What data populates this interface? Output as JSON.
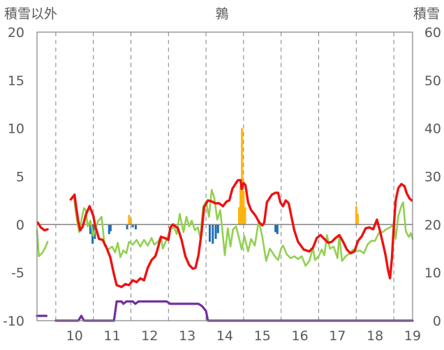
{
  "chart_data": {
    "type": "line",
    "title": "鶉",
    "left_axis_title": "積雪以外",
    "right_axis_title": "積雪",
    "left_ylim": [
      -10,
      20
    ],
    "right_ylim": [
      0,
      60
    ],
    "left_yticks": [
      "20",
      "15",
      "10",
      "5",
      "0",
      "-5",
      "-10"
    ],
    "right_yticks": [
      "60",
      "50",
      "40",
      "30",
      "20",
      "10",
      "0"
    ],
    "xlim": [
      9.5,
      19.5
    ],
    "x_tick_labels": [
      "10",
      "11",
      "12",
      "13",
      "14",
      "15",
      "16",
      "17",
      "18",
      "19"
    ],
    "grid": "vertical dashed at day boundaries, solid horizontal at left-axis 0",
    "colors": {
      "red_line": "#ee1111",
      "green_line": "#92d050",
      "purple_line": "#7030a0",
      "blue_bars": "#1f6fb4",
      "orange_bars": "#ffb30f",
      "zero_line": "#808080"
    },
    "series": [
      {
        "style": "red-line",
        "axis": "left",
        "points": [
          [
            9.52,
            0.2
          ],
          [
            9.6,
            -0.3
          ],
          [
            9.7,
            -0.6
          ],
          [
            9.78,
            -0.5
          ],
          null,
          [
            10.4,
            2.6
          ],
          [
            10.5,
            3.1
          ],
          [
            10.55,
            1.6
          ],
          [
            10.6,
            0.3
          ],
          [
            10.65,
            -0.6
          ],
          [
            10.72,
            -0.2
          ],
          [
            10.8,
            1.0
          ],
          [
            10.9,
            1.9
          ],
          [
            10.95,
            1.4
          ],
          [
            11.0,
            0.9
          ],
          [
            11.05,
            -0.2
          ],
          [
            11.1,
            -0.8
          ],
          [
            11.15,
            -1.5
          ],
          [
            11.25,
            -1.6
          ],
          [
            11.35,
            -2.4
          ],
          [
            11.45,
            -3.4
          ],
          [
            11.55,
            -5.2
          ],
          [
            11.62,
            -6.3
          ],
          [
            11.75,
            -6.5
          ],
          [
            11.85,
            -6.2
          ],
          [
            11.95,
            -6.3
          ],
          [
            12.05,
            -5.8
          ],
          [
            12.15,
            -6.0
          ],
          [
            12.25,
            -5.6
          ],
          [
            12.35,
            -5.8
          ],
          [
            12.45,
            -4.5
          ],
          [
            12.55,
            -3.7
          ],
          [
            12.65,
            -3.3
          ],
          [
            12.7,
            -2.7
          ],
          [
            12.8,
            -1.3
          ],
          [
            12.9,
            -1.4
          ],
          [
            13.0,
            -1.6
          ],
          [
            13.05,
            -0.3
          ],
          [
            13.12,
            0.0
          ],
          [
            13.25,
            -0.4
          ],
          [
            13.35,
            -1.6
          ],
          [
            13.45,
            -3.3
          ],
          [
            13.55,
            -4.2
          ],
          [
            13.65,
            -4.6
          ],
          [
            13.72,
            -4.5
          ],
          [
            13.8,
            -3.2
          ],
          [
            13.88,
            -0.9
          ],
          [
            13.95,
            1.8
          ],
          [
            14.05,
            2.5
          ],
          [
            14.15,
            2.4
          ],
          [
            14.25,
            2.2
          ],
          [
            14.35,
            2.2
          ],
          [
            14.45,
            1.9
          ],
          [
            14.55,
            2.4
          ],
          [
            14.62,
            2.5
          ],
          [
            14.7,
            3.7
          ],
          [
            14.78,
            4.2
          ],
          [
            14.85,
            4.6
          ],
          [
            14.92,
            4.6
          ],
          [
            14.95,
            3.7
          ],
          [
            15.0,
            4.3
          ],
          [
            15.05,
            4.1
          ],
          [
            15.12,
            2.3
          ],
          [
            15.2,
            1.5
          ],
          [
            15.32,
            0.9
          ],
          [
            15.42,
            0.2
          ],
          [
            15.5,
            -0.1
          ],
          [
            15.55,
            0.2
          ],
          [
            15.62,
            2.3
          ],
          [
            15.75,
            3.1
          ],
          [
            15.85,
            3.3
          ],
          [
            15.92,
            3.3
          ],
          [
            15.98,
            2.3
          ],
          [
            16.05,
            1.9
          ],
          [
            16.12,
            2.5
          ],
          [
            16.2,
            2.2
          ],
          [
            16.28,
            0.7
          ],
          [
            16.35,
            -0.6
          ],
          [
            16.45,
            -1.8
          ],
          [
            16.6,
            -2.6
          ],
          [
            16.75,
            -2.8
          ],
          [
            16.85,
            -2.4
          ],
          [
            16.95,
            -1.4
          ],
          [
            17.05,
            -1.1
          ],
          [
            17.15,
            -1.5
          ],
          [
            17.25,
            -1.9
          ],
          [
            17.35,
            -1.8
          ],
          [
            17.45,
            -1.4
          ],
          [
            17.55,
            -1.1
          ],
          [
            17.65,
            -1.8
          ],
          [
            17.75,
            -2.6
          ],
          [
            17.85,
            -3.0
          ],
          [
            17.95,
            -2.8
          ],
          [
            18.05,
            -1.7
          ],
          [
            18.15,
            -1.2
          ],
          [
            18.25,
            -0.4
          ],
          [
            18.35,
            -0.3
          ],
          [
            18.45,
            -0.5
          ],
          [
            18.55,
            0.5
          ],
          [
            18.62,
            -0.5
          ],
          [
            18.7,
            -1.8
          ],
          [
            18.78,
            -3.2
          ],
          [
            18.85,
            -4.8
          ],
          [
            18.9,
            -5.6
          ],
          [
            18.95,
            -3.5
          ],
          [
            19.0,
            -0.2
          ],
          [
            19.05,
            2.5
          ],
          [
            19.12,
            3.8
          ],
          [
            19.2,
            4.2
          ],
          [
            19.28,
            4.0
          ],
          [
            19.35,
            3.2
          ],
          [
            19.42,
            2.7
          ],
          [
            19.48,
            2.5
          ]
        ]
      },
      {
        "style": "green-line",
        "axis": "left",
        "points": [
          [
            9.5,
            -0.6
          ],
          [
            9.55,
            -3.3
          ],
          [
            9.65,
            -2.9
          ],
          [
            9.72,
            -2.4
          ],
          [
            9.78,
            -1.8
          ],
          null,
          [
            10.4,
            2.6
          ],
          [
            10.48,
            2.9
          ],
          [
            10.55,
            0.8
          ],
          [
            10.62,
            -0.8
          ],
          [
            10.68,
            0.4
          ],
          [
            10.75,
            1.7
          ],
          [
            10.8,
            1.5
          ],
          [
            10.85,
            -0.2
          ],
          [
            10.92,
            0.4
          ],
          [
            11.0,
            -1.2
          ],
          [
            11.05,
            -0.6
          ],
          [
            11.12,
            0.3
          ],
          [
            11.22,
            0.8
          ],
          [
            11.3,
            -2.2
          ],
          [
            11.4,
            -2.6
          ],
          [
            11.5,
            -2.3
          ],
          [
            11.58,
            -2.9
          ],
          [
            11.65,
            -1.9
          ],
          [
            11.72,
            -3.4
          ],
          [
            11.8,
            -2.7
          ],
          [
            11.88,
            -3.0
          ],
          [
            11.95,
            -1.8
          ],
          [
            12.05,
            -2.1
          ],
          [
            12.15,
            -1.6
          ],
          [
            12.25,
            -2.3
          ],
          [
            12.35,
            -1.6
          ],
          [
            12.45,
            -2.2
          ],
          [
            12.55,
            -1.4
          ],
          [
            12.62,
            -2.1
          ],
          [
            12.72,
            -1.8
          ],
          [
            12.8,
            -1.2
          ],
          [
            12.85,
            -2.5
          ],
          [
            12.95,
            -1.6
          ],
          [
            13.05,
            -0.5
          ],
          [
            13.15,
            -0.3
          ],
          [
            13.22,
            -1.0
          ],
          [
            13.3,
            1.1
          ],
          [
            13.4,
            -0.8
          ],
          [
            13.48,
            0.8
          ],
          [
            13.55,
            -0.2
          ],
          [
            13.62,
            0.4
          ],
          [
            13.7,
            -0.6
          ],
          [
            13.78,
            -0.3
          ],
          [
            13.85,
            -1.4
          ],
          [
            13.92,
            1.8
          ],
          [
            14.0,
            2.4
          ],
          [
            14.08,
            0.8
          ],
          [
            14.15,
            3.6
          ],
          [
            14.22,
            2.8
          ],
          [
            14.3,
            0.5
          ],
          [
            14.38,
            1.5
          ],
          [
            14.45,
            -1.2
          ],
          [
            14.5,
            -3.2
          ],
          [
            14.58,
            -0.4
          ],
          [
            14.65,
            -2.3
          ],
          [
            14.72,
            -0.5
          ],
          [
            14.8,
            -0.2
          ],
          [
            14.88,
            -1.4
          ],
          [
            14.95,
            -2.6
          ],
          [
            15.02,
            -1.2
          ],
          [
            15.12,
            -2.8
          ],
          [
            15.2,
            -1.5
          ],
          [
            15.3,
            -2.2
          ],
          [
            15.4,
            0.3
          ],
          [
            15.45,
            -0.4
          ],
          [
            15.5,
            -1.3
          ],
          [
            15.6,
            -3.8
          ],
          [
            15.7,
            -2.5
          ],
          [
            15.78,
            -3.0
          ],
          [
            15.85,
            -3.4
          ],
          [
            15.92,
            -3.7
          ],
          [
            16.0,
            -2.5
          ],
          [
            16.05,
            -2.2
          ],
          [
            16.15,
            -3.1
          ],
          [
            16.25,
            -3.5
          ],
          [
            16.35,
            -3.3
          ],
          [
            16.45,
            -3.6
          ],
          [
            16.55,
            -3.3
          ],
          [
            16.65,
            -4.3
          ],
          [
            16.75,
            -3.8
          ],
          [
            16.85,
            -2.4
          ],
          [
            16.9,
            -3.7
          ],
          [
            17.0,
            -3.3
          ],
          [
            17.08,
            -2.6
          ],
          [
            17.15,
            -3.2
          ],
          [
            17.22,
            -1.1
          ],
          [
            17.3,
            -2.5
          ],
          [
            17.4,
            -2.3
          ],
          [
            17.5,
            -3.5
          ],
          [
            17.55,
            -1.1
          ],
          [
            17.62,
            -3.8
          ],
          [
            17.72,
            -3.3
          ],
          [
            17.82,
            -3.0
          ],
          [
            17.92,
            -2.6
          ],
          [
            18.0,
            -2.8
          ],
          [
            18.1,
            -2.7
          ],
          [
            18.2,
            -3.0
          ],
          [
            18.3,
            -2.1
          ],
          [
            18.4,
            -1.7
          ],
          [
            18.5,
            -1.7
          ],
          [
            18.6,
            -0.9
          ],
          [
            18.7,
            -0.8
          ],
          [
            18.8,
            -0.5
          ],
          [
            18.9,
            -0.3
          ],
          [
            19.0,
            0.0
          ],
          [
            19.05,
            -1.5
          ],
          [
            19.12,
            0.9
          ],
          [
            19.2,
            1.9
          ],
          [
            19.25,
            2.3
          ],
          [
            19.32,
            -0.7
          ],
          [
            19.4,
            -1.3
          ],
          [
            19.45,
            -0.9
          ],
          [
            19.5,
            -1.5
          ]
        ]
      },
      {
        "style": "purple-line",
        "axis": "right",
        "points": [
          [
            9.5,
            1.0
          ],
          [
            9.75,
            1.0
          ],
          null,
          [
            10.0,
            0.0
          ],
          [
            10.6,
            0.0
          ],
          [
            10.68,
            1.0
          ],
          [
            10.75,
            0.0
          ],
          [
            11.55,
            0.0
          ],
          [
            11.62,
            4.0
          ],
          [
            11.75,
            4.0
          ],
          [
            11.8,
            3.5
          ],
          [
            11.88,
            4.0
          ],
          [
            12.05,
            4.0
          ],
          [
            12.12,
            3.5
          ],
          [
            12.2,
            4.0
          ],
          [
            12.95,
            4.0
          ],
          [
            13.05,
            3.5
          ],
          [
            13.8,
            3.5
          ],
          [
            13.9,
            3.0
          ],
          [
            14.0,
            2.0
          ],
          [
            14.05,
            0.0
          ],
          [
            19.5,
            0.0
          ]
        ]
      }
    ],
    "blue_bars": [
      [
        10.92,
        -1.0
      ],
      [
        10.98,
        -2.0
      ],
      [
        11.04,
        -1.5
      ],
      [
        11.42,
        -1.0
      ],
      [
        11.46,
        -0.7
      ],
      [
        11.9,
        -0.5
      ],
      [
        12.05,
        -0.3
      ],
      [
        12.13,
        -0.5
      ],
      [
        14.1,
        -1.8
      ],
      [
        14.18,
        -2.0
      ],
      [
        14.26,
        -1.5
      ],
      [
        14.32,
        -0.9
      ],
      [
        15.85,
        -0.8
      ],
      [
        15.9,
        -1.0
      ]
    ],
    "orange_bars": [
      [
        11.95,
        1.0
      ],
      [
        12.0,
        0.6
      ],
      [
        14.88,
        1.8
      ],
      [
        14.92,
        4.0
      ],
      [
        14.96,
        10.0
      ],
      [
        15.0,
        3.5
      ],
      [
        15.04,
        1.8
      ],
      [
        18.0,
        1.9
      ],
      [
        18.04,
        1.1
      ]
    ]
  }
}
